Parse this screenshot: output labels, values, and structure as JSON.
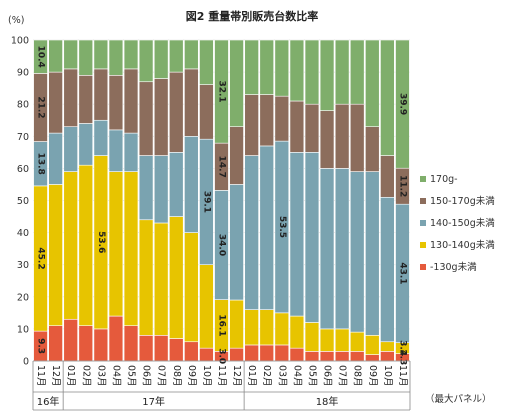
{
  "chart_data": {
    "type": "bar",
    "stacked": "percent",
    "title": "図2  重量帯別販売台数比率",
    "ylabel": "(%)",
    "ylim": [
      0,
      100
    ],
    "yticks": [
      0,
      10,
      20,
      30,
      40,
      50,
      60,
      70,
      80,
      90,
      100
    ],
    "note": "（最大パネル）",
    "categories": [
      "11月",
      "12月",
      "01月",
      "02月",
      "03月",
      "04月",
      "05月",
      "06月",
      "07月",
      "08月",
      "09月",
      "10月",
      "11月",
      "12月",
      "01月",
      "02月",
      "03月",
      "04月",
      "05月",
      "06月",
      "07月",
      "08月",
      "09月",
      "10月",
      "11月"
    ],
    "year_groups": [
      {
        "label": "16年",
        "count": 2
      },
      {
        "label": "17年",
        "count": 12
      },
      {
        "label": "18年",
        "count": 11
      }
    ],
    "series": [
      {
        "name": "-130g未満",
        "color": "#e55a3c",
        "values": [
          9.3,
          11,
          13,
          11,
          10,
          14,
          11,
          8,
          8,
          7,
          6,
          4,
          3,
          4,
          5,
          5,
          5,
          4,
          3,
          3,
          3,
          3,
          2,
          3,
          2.3
        ]
      },
      {
        "name": "130-140g未満",
        "color": "#e7c400",
        "values": [
          45.2,
          44,
          46,
          50,
          54,
          45,
          48,
          36,
          35,
          38,
          34,
          26,
          16.1,
          15,
          11,
          11,
          10,
          10,
          9,
          7,
          7,
          6,
          6,
          3,
          3.4
        ]
      },
      {
        "name": "140-150g未満",
        "color": "#7aa3b0",
        "values": [
          13.8,
          16,
          14,
          13,
          11,
          13,
          12,
          20,
          21,
          20,
          30,
          39.1,
          34.0,
          36,
          48,
          51,
          53.5,
          51,
          53,
          50,
          50,
          50,
          51,
          45,
          43.1
        ]
      },
      {
        "name": "150-170g未満",
        "color": "#8c6d5c",
        "values": [
          21.2,
          19,
          18,
          15,
          16,
          17,
          20,
          23,
          24,
          25,
          21,
          17,
          14.7,
          18,
          19,
          16,
          14,
          16,
          15,
          18,
          20,
          21,
          14,
          13,
          11.2
        ]
      },
      {
        "name": "170g-",
        "color": "#7fae6b",
        "values": [
          10.4,
          10,
          9,
          11,
          9,
          11,
          9,
          13,
          12,
          10,
          9,
          13.9,
          32.1,
          27,
          17,
          17,
          17.5,
          19,
          20,
          22,
          20,
          20,
          27,
          36,
          39.9
        ]
      }
    ],
    "data_labels": [
      {
        "bar": 0,
        "series": 0,
        "text": "9.3"
      },
      {
        "bar": 0,
        "series": 1,
        "text": "45.2"
      },
      {
        "bar": 0,
        "series": 2,
        "text": "13.8"
      },
      {
        "bar": 0,
        "series": 3,
        "text": "21.2"
      },
      {
        "bar": 0,
        "series": 4,
        "text": "10.4"
      },
      {
        "bar": 4,
        "series": 1,
        "text": "53.6"
      },
      {
        "bar": 11,
        "series": 2,
        "text": "39.1"
      },
      {
        "bar": 12,
        "series": 0,
        "text": "3.0"
      },
      {
        "bar": 12,
        "series": 1,
        "text": "16.1"
      },
      {
        "bar": 12,
        "series": 2,
        "text": "34.0"
      },
      {
        "bar": 12,
        "series": 3,
        "text": "14.7"
      },
      {
        "bar": 12,
        "series": 4,
        "text": "32.1"
      },
      {
        "bar": 16,
        "series": 2,
        "text": "53.5"
      },
      {
        "bar": 24,
        "series": 0,
        "text": "2.3"
      },
      {
        "bar": 24,
        "series": 1,
        "text": "3.4"
      },
      {
        "bar": 24,
        "series": 2,
        "text": "43.1"
      },
      {
        "bar": 24,
        "series": 3,
        "text": "11.2"
      },
      {
        "bar": 24,
        "series": 4,
        "text": "39.9"
      }
    ],
    "legend": {
      "placement": "right",
      "order": [
        4,
        3,
        2,
        1,
        0
      ]
    }
  }
}
